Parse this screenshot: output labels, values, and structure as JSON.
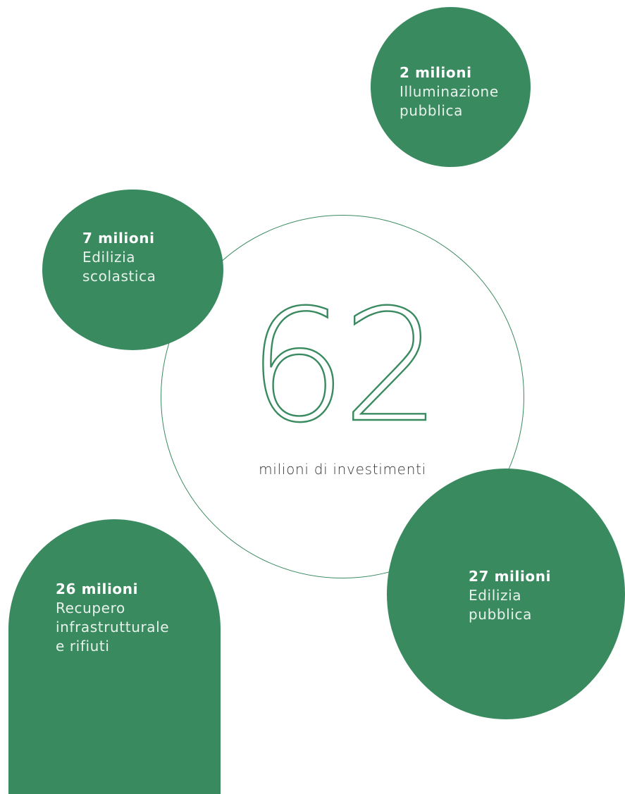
{
  "total": {
    "number": "62",
    "label": "milioni di investimenti"
  },
  "bubbles": [
    {
      "amount": "2 milioni",
      "label_line1": "Illuminazione",
      "label_line2": "pubblica",
      "label_line3": ""
    },
    {
      "amount": "7 milioni",
      "label_line1": "Edilizia",
      "label_line2": "scolastica",
      "label_line3": ""
    },
    {
      "amount": "27 milioni",
      "label_line1": "Edilizia",
      "label_line2": "pubblica",
      "label_line3": ""
    },
    {
      "amount": "26 milioni",
      "label_line1": "Recupero",
      "label_line2": "infrastrutturale",
      "label_line3": "e rifiuti"
    }
  ],
  "colors": {
    "accent": "#3a8a60",
    "background": "#ffffff",
    "text": "#333333"
  }
}
